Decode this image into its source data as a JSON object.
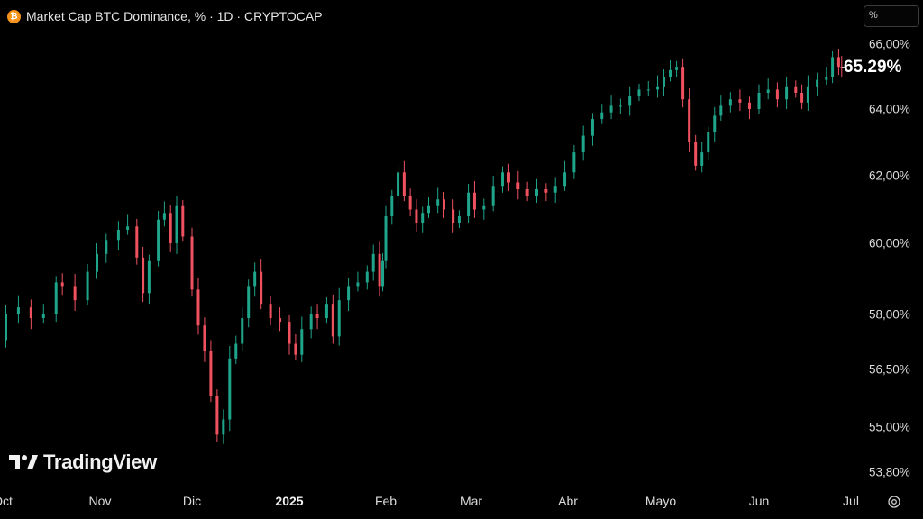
{
  "header": {
    "coin_symbol": "₿",
    "title": "Market Cap BTC Dominance, % · 1D · CRYPTOCAP"
  },
  "scale_box": "%",
  "last_value_label": "65.29%",
  "logo_text": "TradingView",
  "colors": {
    "up": "#1fa58a",
    "down": "#f0515f",
    "background": "#000000",
    "coin": "#f7931a"
  },
  "chart_data": {
    "type": "candlestick",
    "y_tick_labels": [
      "66,00%",
      "64,00%",
      "62,00%",
      "60,00%",
      "58,00%",
      "56,50%",
      "55,00%",
      "53,80%"
    ],
    "y_tick_values": [
      66.0,
      64.0,
      62.0,
      60.0,
      58.0,
      56.5,
      55.0,
      53.8
    ],
    "x_tick_labels": [
      "Oct",
      "Nov",
      "Dic",
      "2025",
      "Feb",
      "Mar",
      "Abr",
      "Mayo",
      "Jun",
      "Jul"
    ],
    "x_tick_dates": [
      "2024-10-01",
      "2024-11-01",
      "2024-12-01",
      "2025-01-01",
      "2025-02-01",
      "2025-03-01",
      "2025-04-01",
      "2025-05-01",
      "2025-06-01",
      "2025-07-01"
    ],
    "last_value": 65.29,
    "series": [
      {
        "name": "BTC Dominance",
        "closes": [
          [
            "2024-09-30",
            57.3
          ],
          [
            "2024-10-02",
            58.0
          ],
          [
            "2024-10-06",
            58.2
          ],
          [
            "2024-10-10",
            57.9
          ],
          [
            "2024-10-14",
            58.0
          ],
          [
            "2024-10-18",
            58.9
          ],
          [
            "2024-10-20",
            58.8
          ],
          [
            "2024-10-24",
            58.4
          ],
          [
            "2024-10-28",
            59.2
          ],
          [
            "2024-10-31",
            59.7
          ],
          [
            "2024-11-03",
            60.1
          ],
          [
            "2024-11-07",
            60.4
          ],
          [
            "2024-11-10",
            60.5
          ],
          [
            "2024-11-13",
            59.6
          ],
          [
            "2024-11-15",
            58.6
          ],
          [
            "2024-11-17",
            59.5
          ],
          [
            "2024-11-20",
            60.7
          ],
          [
            "2024-11-22",
            60.9
          ],
          [
            "2024-11-24",
            60.0
          ],
          [
            "2024-11-26",
            61.1
          ],
          [
            "2024-11-28",
            60.2
          ],
          [
            "2024-12-01",
            58.7
          ],
          [
            "2024-12-03",
            57.7
          ],
          [
            "2024-12-05",
            57.0
          ],
          [
            "2024-12-07",
            55.8
          ],
          [
            "2024-12-09",
            54.8
          ],
          [
            "2024-12-11",
            55.2
          ],
          [
            "2024-12-13",
            56.8
          ],
          [
            "2024-12-15",
            57.2
          ],
          [
            "2024-12-17",
            57.9
          ],
          [
            "2024-12-19",
            58.8
          ],
          [
            "2024-12-21",
            59.2
          ],
          [
            "2024-12-23",
            58.3
          ],
          [
            "2024-12-26",
            57.9
          ],
          [
            "2024-12-29",
            57.8
          ],
          [
            "2025-01-01",
            57.2
          ],
          [
            "2025-01-03",
            56.9
          ],
          [
            "2025-01-05",
            57.6
          ],
          [
            "2025-01-08",
            58.0
          ],
          [
            "2025-01-10",
            57.9
          ],
          [
            "2025-01-13",
            58.3
          ],
          [
            "2025-01-15",
            57.4
          ],
          [
            "2025-01-17",
            58.4
          ],
          [
            "2025-01-20",
            58.8
          ],
          [
            "2025-01-23",
            58.9
          ],
          [
            "2025-01-26",
            59.2
          ],
          [
            "2025-01-28",
            59.7
          ],
          [
            "2025-01-30",
            58.8
          ],
          [
            "2025-01-31",
            59.5
          ],
          [
            "2025-02-01",
            60.8
          ],
          [
            "2025-02-03",
            61.4
          ],
          [
            "2025-02-05",
            62.1
          ],
          [
            "2025-02-07",
            61.4
          ],
          [
            "2025-02-09",
            61.0
          ],
          [
            "2025-02-11",
            60.6
          ],
          [
            "2025-02-13",
            60.9
          ],
          [
            "2025-02-15",
            61.1
          ],
          [
            "2025-02-18",
            61.3
          ],
          [
            "2025-02-20",
            61.0
          ],
          [
            "2025-02-23",
            60.6
          ],
          [
            "2025-02-25",
            60.8
          ],
          [
            "2025-02-28",
            61.5
          ],
          [
            "2025-03-02",
            61.0
          ],
          [
            "2025-03-05",
            61.1
          ],
          [
            "2025-03-08",
            61.7
          ],
          [
            "2025-03-11",
            62.1
          ],
          [
            "2025-03-13",
            61.8
          ],
          [
            "2025-03-16",
            61.6
          ],
          [
            "2025-03-19",
            61.4
          ],
          [
            "2025-03-22",
            61.6
          ],
          [
            "2025-03-25",
            61.5
          ],
          [
            "2025-03-28",
            61.7
          ],
          [
            "2025-03-31",
            62.1
          ],
          [
            "2025-04-03",
            62.7
          ],
          [
            "2025-04-06",
            63.2
          ],
          [
            "2025-04-09",
            63.7
          ],
          [
            "2025-04-12",
            63.9
          ],
          [
            "2025-04-15",
            64.1
          ],
          [
            "2025-04-18",
            64.1
          ],
          [
            "2025-04-21",
            64.4
          ],
          [
            "2025-04-24",
            64.6
          ],
          [
            "2025-04-27",
            64.6
          ],
          [
            "2025-04-30",
            64.7
          ],
          [
            "2025-05-02",
            65.0
          ],
          [
            "2025-05-04",
            65.2
          ],
          [
            "2025-05-06",
            65.3
          ],
          [
            "2025-05-08",
            64.3
          ],
          [
            "2025-05-10",
            63.0
          ],
          [
            "2025-05-12",
            62.3
          ],
          [
            "2025-05-14",
            62.7
          ],
          [
            "2025-05-16",
            63.3
          ],
          [
            "2025-05-18",
            63.8
          ],
          [
            "2025-05-20",
            64.1
          ],
          [
            "2025-05-23",
            64.3
          ],
          [
            "2025-05-26",
            64.2
          ],
          [
            "2025-05-29",
            64.0
          ],
          [
            "2025-06-01",
            64.5
          ],
          [
            "2025-06-04",
            64.6
          ],
          [
            "2025-06-07",
            64.3
          ],
          [
            "2025-06-10",
            64.7
          ],
          [
            "2025-06-13",
            64.5
          ],
          [
            "2025-06-15",
            64.2
          ],
          [
            "2025-06-17",
            64.7
          ],
          [
            "2025-06-20",
            64.9
          ],
          [
            "2025-06-23",
            65.0
          ],
          [
            "2025-06-25",
            65.6
          ],
          [
            "2025-06-27",
            65.3
          ],
          [
            "2025-06-28",
            65.29
          ]
        ]
      }
    ]
  }
}
